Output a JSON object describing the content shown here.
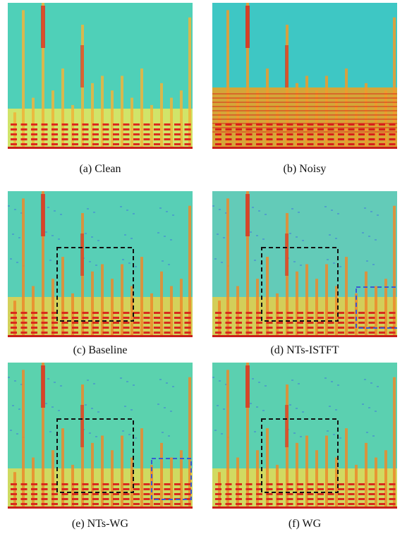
{
  "figure": {
    "panels": [
      {
        "id": "a",
        "caption": "(a)  Clean",
        "boxes": [],
        "colors": {
          "bg": "#4fd0b8",
          "low": "#e7e85a",
          "streak": "#f0b43a",
          "harm": "#dc2a1e"
        }
      },
      {
        "id": "b",
        "caption": "(b)  Noisy",
        "boxes": [],
        "colors": {
          "bg": "#3ec7c4",
          "low": "#f0a020",
          "streak": "#f09a2c",
          "harm": "#d81f1a"
        }
      },
      {
        "id": "c",
        "caption": "(c)  Baseline",
        "boxes": [
          "black-dashed"
        ],
        "colors": {
          "bg": "#58cfb6",
          "low": "#ead14a",
          "streak": "#ec8a2c",
          "harm": "#d82a1e"
        }
      },
      {
        "id": "d",
        "caption": "(d)  NTs-ISTFT",
        "boxes": [
          "black-dashed",
          "blue-dashed"
        ],
        "colors": {
          "bg": "#63cbb8",
          "low": "#e6cf48",
          "streak": "#ec8a2c",
          "harm": "#d82a1e"
        }
      },
      {
        "id": "e",
        "caption": "(e)  NTs-WG",
        "boxes": [
          "black-dashed",
          "blue-dashed"
        ],
        "colors": {
          "bg": "#5bd2ae",
          "low": "#e4dc52",
          "streak": "#ec8a2c",
          "harm": "#d82a1e"
        }
      },
      {
        "id": "f",
        "caption": "(f)  WG",
        "boxes": [
          "black-dashed"
        ],
        "colors": {
          "bg": "#5bd0b0",
          "low": "#e6dc54",
          "streak": "#ec8a2c",
          "harm": "#d82a1e"
        }
      }
    ],
    "box_colors": {
      "black-dashed": "#111111",
      "blue-dashed": "#3b5bd0"
    }
  }
}
